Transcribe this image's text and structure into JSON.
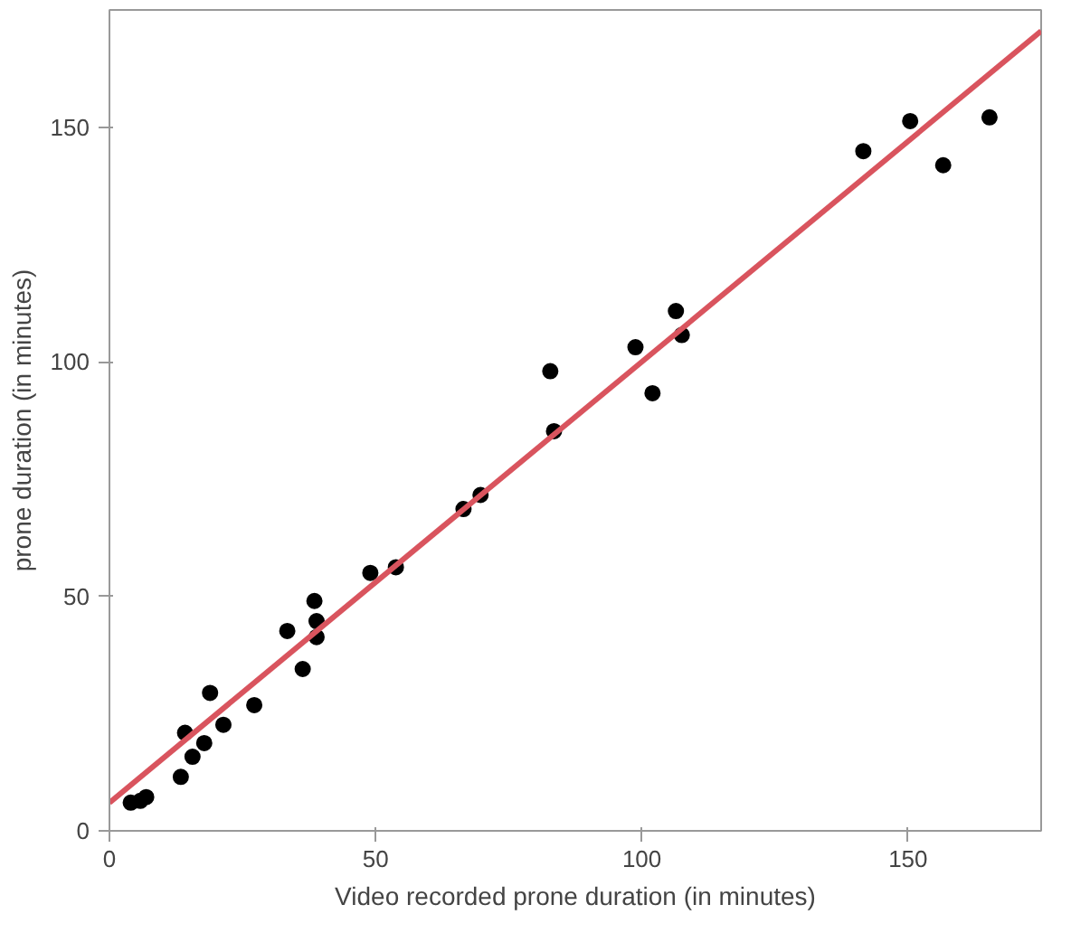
{
  "chart_data": {
    "type": "scatter",
    "xlabel": "Video recorded prone duration (in minutes)",
    "ylabel": "prone duration (in minutes)",
    "xlim": [
      0,
      175
    ],
    "ylim": [
      0,
      175
    ],
    "xticks": [
      0,
      50,
      100,
      150
    ],
    "yticks": [
      0,
      50,
      100,
      150
    ],
    "grid": false,
    "marker": "circle",
    "series": [
      {
        "color": "#000000",
        "x": [
          4,
          5.8,
          6.9,
          13.4,
          14.2,
          15.6,
          17.8,
          18.9,
          21.4,
          27.2,
          33.4,
          36.3,
          38.5,
          38.9,
          38.9,
          49,
          53.8,
          66.5,
          69.7,
          82.8,
          83.5,
          98.8,
          102,
          106.4,
          107.5,
          141.6,
          150.4,
          156.6,
          165.3
        ],
        "values": [
          6,
          6.4,
          7.2,
          11.5,
          20.9,
          15.8,
          18.7,
          29.4,
          22.6,
          26.8,
          42.6,
          34.5,
          49,
          44.7,
          41.3,
          55,
          56.2,
          68.6,
          71.6,
          98,
          85.2,
          103.1,
          93.3,
          110.8,
          105.7,
          144.9,
          151.3,
          141.9,
          152.1
        ]
      },
      {
        "type": "line",
        "color": "#d9545e",
        "marker": "none",
        "x": [
          0,
          175
        ],
        "values": [
          6,
          170.5
        ]
      }
    ]
  }
}
